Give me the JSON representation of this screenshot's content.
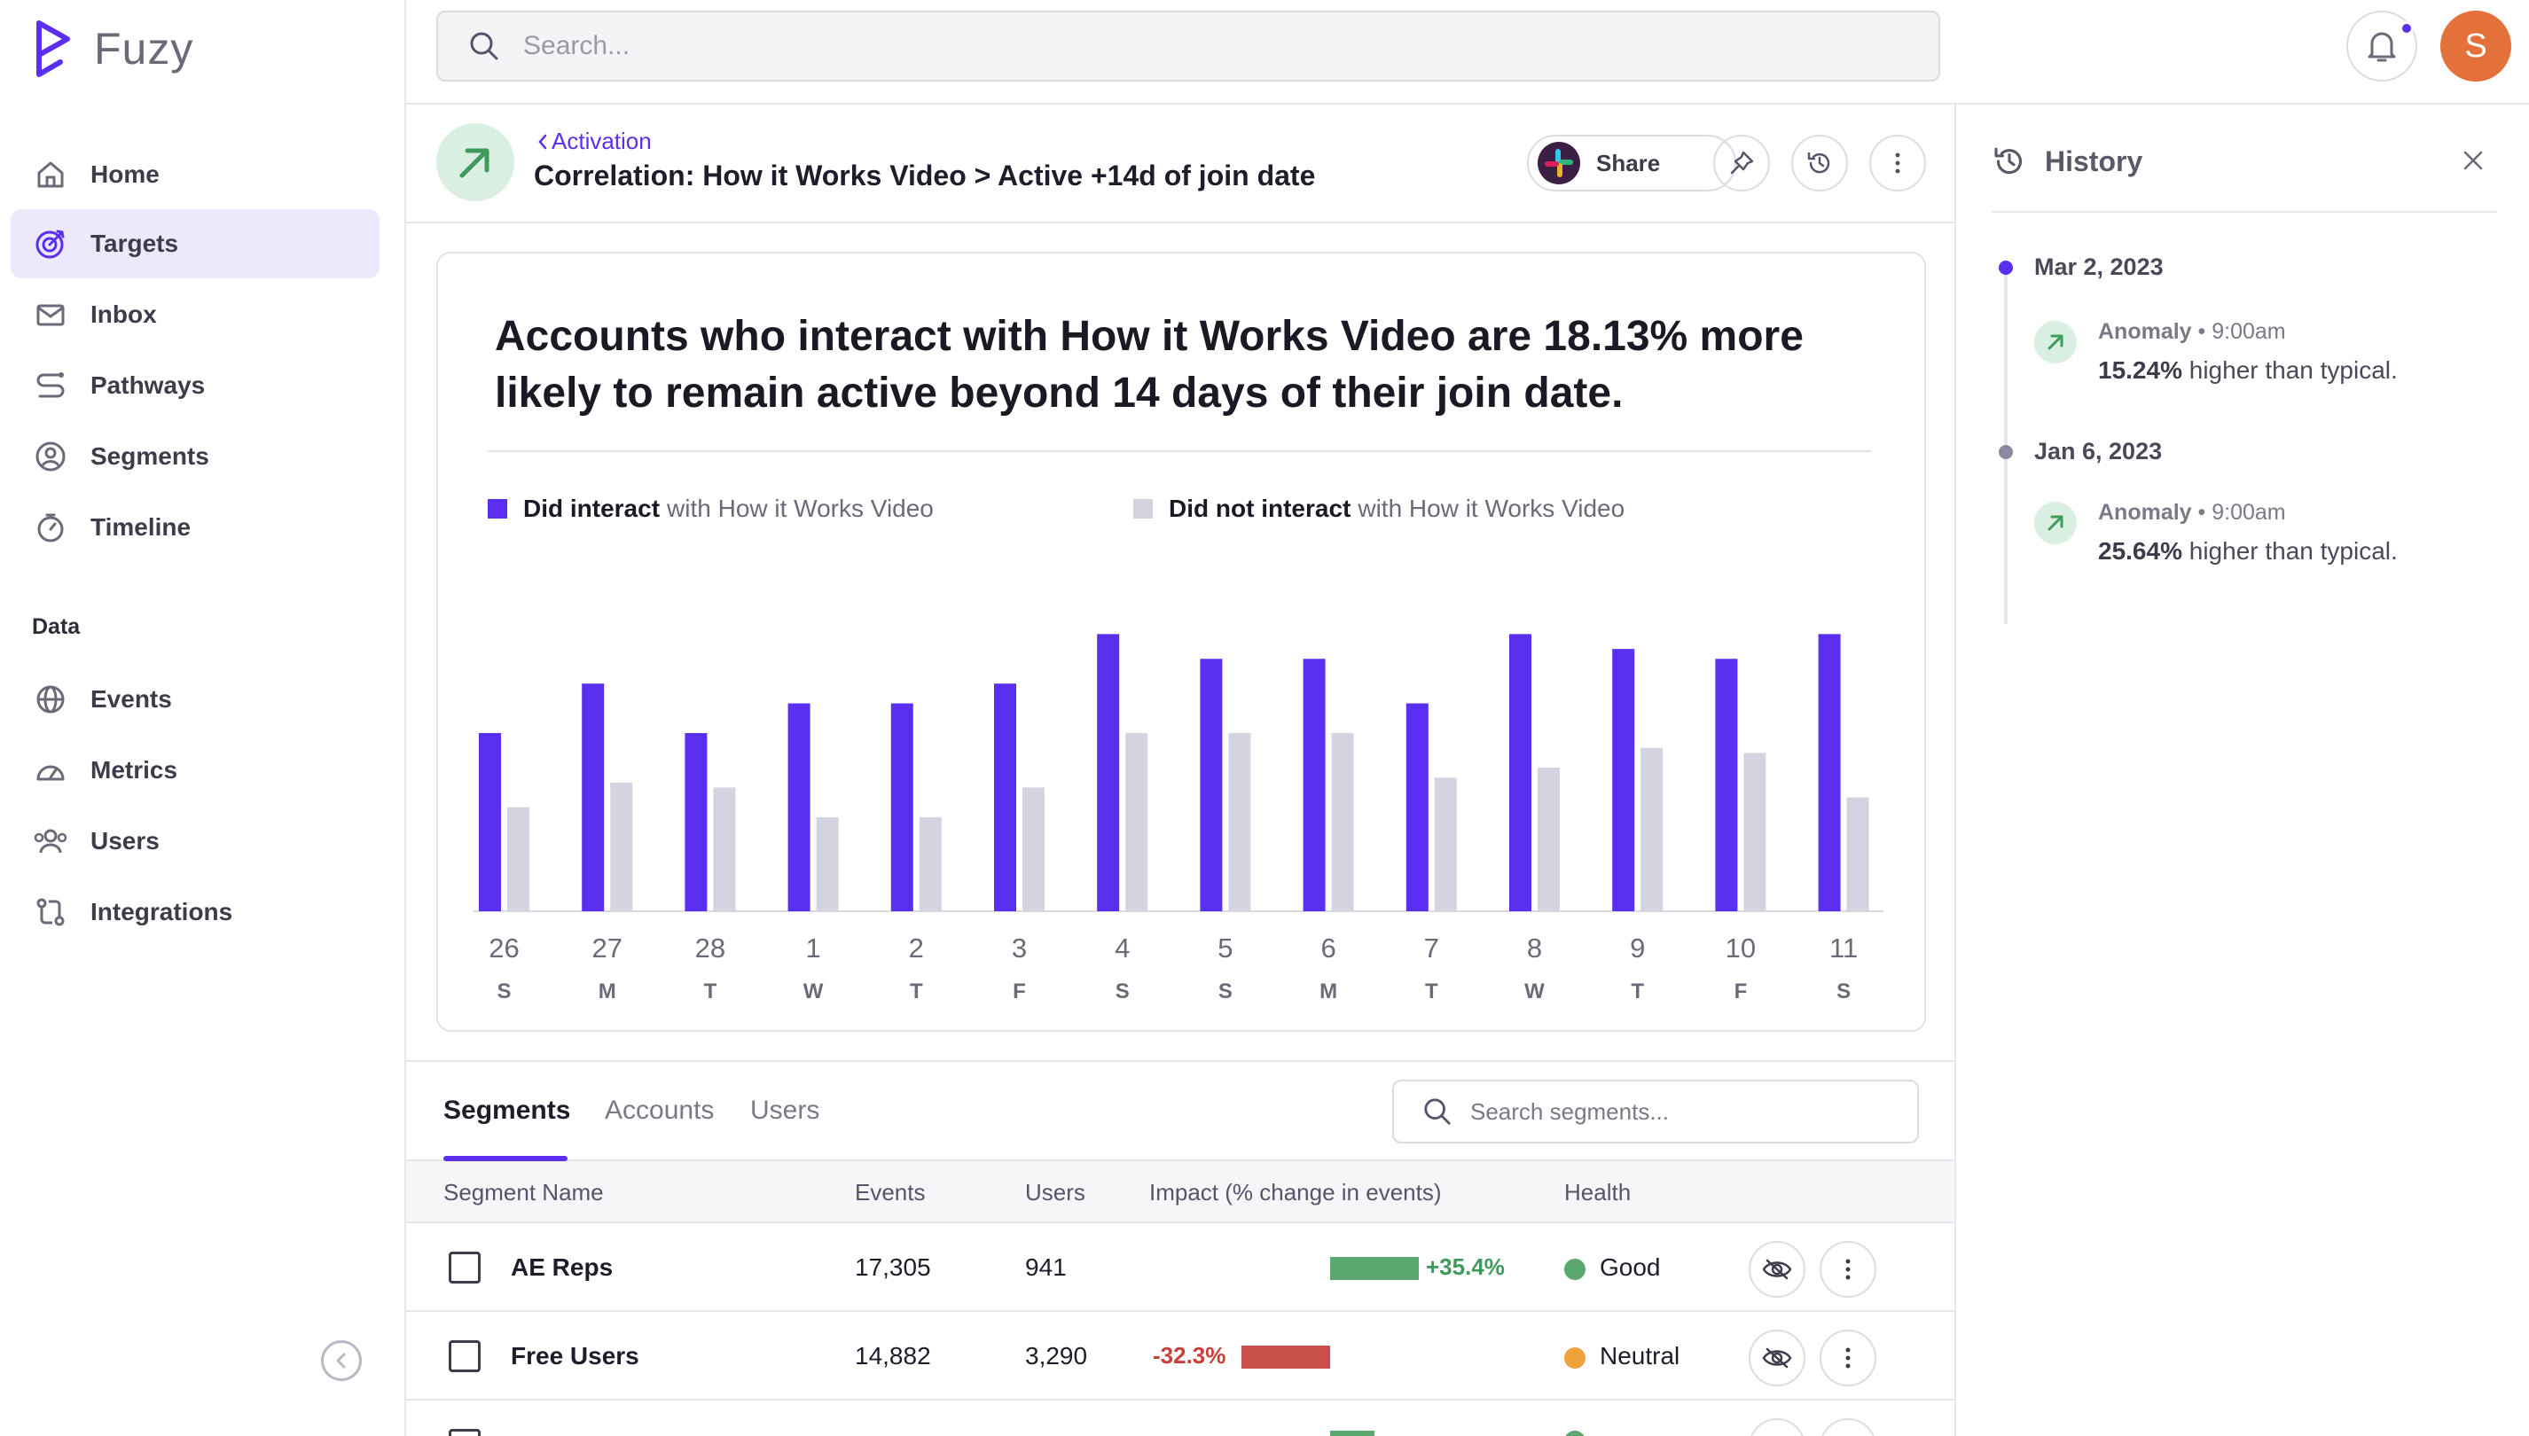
{
  "app": {
    "name": "Fuzy",
    "accent": "#5b2ff0"
  },
  "sidebar": {
    "items": [
      {
        "label": "Home",
        "icon": "home-icon"
      },
      {
        "label": "Targets",
        "icon": "target-icon",
        "active": true
      },
      {
        "label": "Inbox",
        "icon": "inbox-icon"
      },
      {
        "label": "Pathways",
        "icon": "pathways-icon"
      },
      {
        "label": "Segments",
        "icon": "segments-icon"
      },
      {
        "label": "Timeline",
        "icon": "stopwatch-icon"
      }
    ],
    "section_label": "Data",
    "data_items": [
      {
        "label": "Events",
        "icon": "globe-icon"
      },
      {
        "label": "Metrics",
        "icon": "gauge-icon"
      },
      {
        "label": "Users",
        "icon": "users-icon"
      },
      {
        "label": "Integrations",
        "icon": "integrations-icon"
      }
    ]
  },
  "topbar": {
    "search_placeholder": "Search...",
    "avatar_initial": "S"
  },
  "header": {
    "breadcrumb": "Activation",
    "title": "Correlation: How it Works Video > Active +14d of join date",
    "share_label": "Share"
  },
  "insight": {
    "headline": "Accounts who interact with How it Works Video are 18.13% more likely to remain active beyond 14 days of their join date.",
    "legend": [
      {
        "strong": "Did interact",
        "rest": "with How it Works Video",
        "color": "#5b2ff0"
      },
      {
        "strong": "Did not interact",
        "rest": "with How it Works Video",
        "color": "#d4d4e0"
      }
    ]
  },
  "chart_data": {
    "type": "bar",
    "categories": [
      "26",
      "27",
      "28",
      "1",
      "2",
      "3",
      "4",
      "5",
      "6",
      "7",
      "8",
      "9",
      "10",
      "11"
    ],
    "weekdays": [
      "S",
      "M",
      "T",
      "W",
      "T",
      "F",
      "S",
      "S",
      "M",
      "T",
      "W",
      "T",
      "F",
      "S"
    ],
    "series": [
      {
        "name": "Did interact",
        "color": "#5b2ff0",
        "values": [
          36,
          46,
          36,
          42,
          42,
          46,
          56,
          51,
          51,
          42,
          56,
          53,
          51,
          56
        ]
      },
      {
        "name": "Did not interact",
        "color": "#d4d4e0",
        "values": [
          21,
          26,
          25,
          19,
          19,
          25,
          36,
          36,
          36,
          27,
          29,
          33,
          32,
          23
        ]
      }
    ],
    "ylim": [
      0,
      60
    ],
    "grid": false
  },
  "tabs": {
    "items": [
      "Segments",
      "Accounts",
      "Users"
    ],
    "active": "Segments",
    "search_placeholder": "Search segments..."
  },
  "table": {
    "columns": [
      "Segment Name",
      "Events",
      "Users",
      "Impact (% change in events)",
      "Health"
    ],
    "rows": [
      {
        "name": "AE Reps",
        "events": "17,305",
        "users": "941",
        "impact": "+35.4%",
        "impact_value": 35.4,
        "health": "Good",
        "health_color": "#5aa86e"
      },
      {
        "name": "Free Users",
        "events": "14,882",
        "users": "3,290",
        "impact": "-32.3%",
        "impact_value": -32.3,
        "health": "Neutral",
        "health_color": "#f0a23c"
      }
    ]
  },
  "history": {
    "title": "History",
    "entries": [
      {
        "date": "Mar 2, 2023",
        "type": "Anomaly",
        "time": "9:00am",
        "value": "15.24%",
        "text": "higher than typical."
      },
      {
        "date": "Jan 6, 2023",
        "type": "Anomaly",
        "time": "9:00am",
        "value": "25.64%",
        "text": "higher than typical."
      }
    ]
  }
}
